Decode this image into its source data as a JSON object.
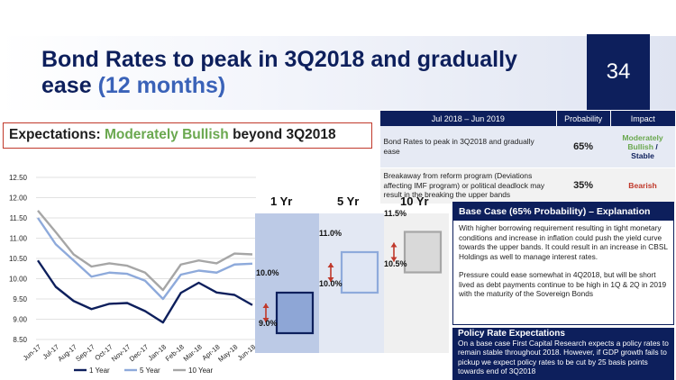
{
  "slide": {
    "title_main": "Bond Rates to peak in 3Q2018 and gradually ease",
    "title_accent": "(12 months)",
    "page_number": "34"
  },
  "expectations": {
    "prefix": "Expectations:",
    "sentiment": "Moderately Bullish",
    "suffix": "beyond 3Q2018"
  },
  "scenario_table": {
    "headers": [
      "Jul 2018 – Jun 2019",
      "Probability",
      "Impact"
    ],
    "rows": [
      {
        "description": "Bond Rates to peak in 3Q2018 and gradually ease",
        "probability": "65%",
        "impact_part1": "Moderately Bullish",
        "impact_sep": " /",
        "impact_part2": "Stable"
      },
      {
        "description": "Breakaway from reform program (Deviations affecting IMF program) or political deadlock may result in the breaking the upper bands",
        "probability": "35%",
        "impact": "Bearish"
      }
    ]
  },
  "colors": {
    "navy": "#0d1f5c",
    "green": "#6aa84f",
    "red": "#c0392b",
    "light_blue": "#8eaadb",
    "grey": "#a6a6a6"
  },
  "chart_data": {
    "type": "line",
    "categories": [
      "Jun-17",
      "Jul-17",
      "Aug-17",
      "Sep-17",
      "Oct-17",
      "Nov-17",
      "Dec-17",
      "Jan-18",
      "Feb-18",
      "Mar-18",
      "Apr-18",
      "May-18",
      "Jun-18"
    ],
    "series": [
      {
        "name": "1 Year",
        "values": [
          10.45,
          9.8,
          9.45,
          9.25,
          9.38,
          9.4,
          9.2,
          8.92,
          9.65,
          9.9,
          9.66,
          9.6,
          9.35
        ]
      },
      {
        "name": "5 Year",
        "values": [
          11.5,
          10.85,
          10.45,
          10.05,
          10.15,
          10.12,
          9.95,
          9.5,
          10.1,
          10.2,
          10.15,
          10.35,
          10.37
        ]
      },
      {
        "name": "10 Year",
        "values": [
          11.68,
          11.15,
          10.6,
          10.3,
          10.38,
          10.32,
          10.15,
          9.72,
          10.35,
          10.45,
          10.38,
          10.62,
          10.6
        ]
      }
    ],
    "y_ticks": [
      "12.50",
      "12.00",
      "11.50",
      "11.00",
      "10.50",
      "10.00",
      "9.50",
      "9.00",
      "8.50"
    ],
    "ylim": [
      8.5,
      12.5
    ],
    "legend_position": "bottom",
    "forecast_bands": [
      {
        "label": "1 Yr",
        "low_label": "9.0%",
        "high_label": "10.0%",
        "low": 9.0,
        "high": 10.0
      },
      {
        "label": "5 Yr",
        "low_label": "10.0%",
        "high_label": "11.0%",
        "low": 10.0,
        "high": 11.0
      },
      {
        "label": "10 Yr",
        "low_label": "10.5%",
        "high_label": "11.5%",
        "low": 10.5,
        "high": 11.5
      }
    ]
  },
  "base_case": {
    "heading": "Base Case (65% Probability) – Explanation",
    "para1": "With higher borrowing requirement resulting in tight monetary conditions and increase in inflation could push the yield curve towards the upper bands. It could result in an increase in CBSL Holdings as well to manage interest rates.",
    "para2": "Pressure could ease somewhat in 4Q2018, but will be short lived as debt payments continue to be high in 1Q & 2Q in 2019 with the maturity of the Sovereign Bonds"
  },
  "policy": {
    "heading": "Policy Rate Expectations",
    "body": "On a base case First Capital Research expects a policy rates to remain stable throughout 2018. However, if GDP growth fails to pickup we expect policy rates to be cut by 25 basis points towards end of 3Q2018"
  }
}
